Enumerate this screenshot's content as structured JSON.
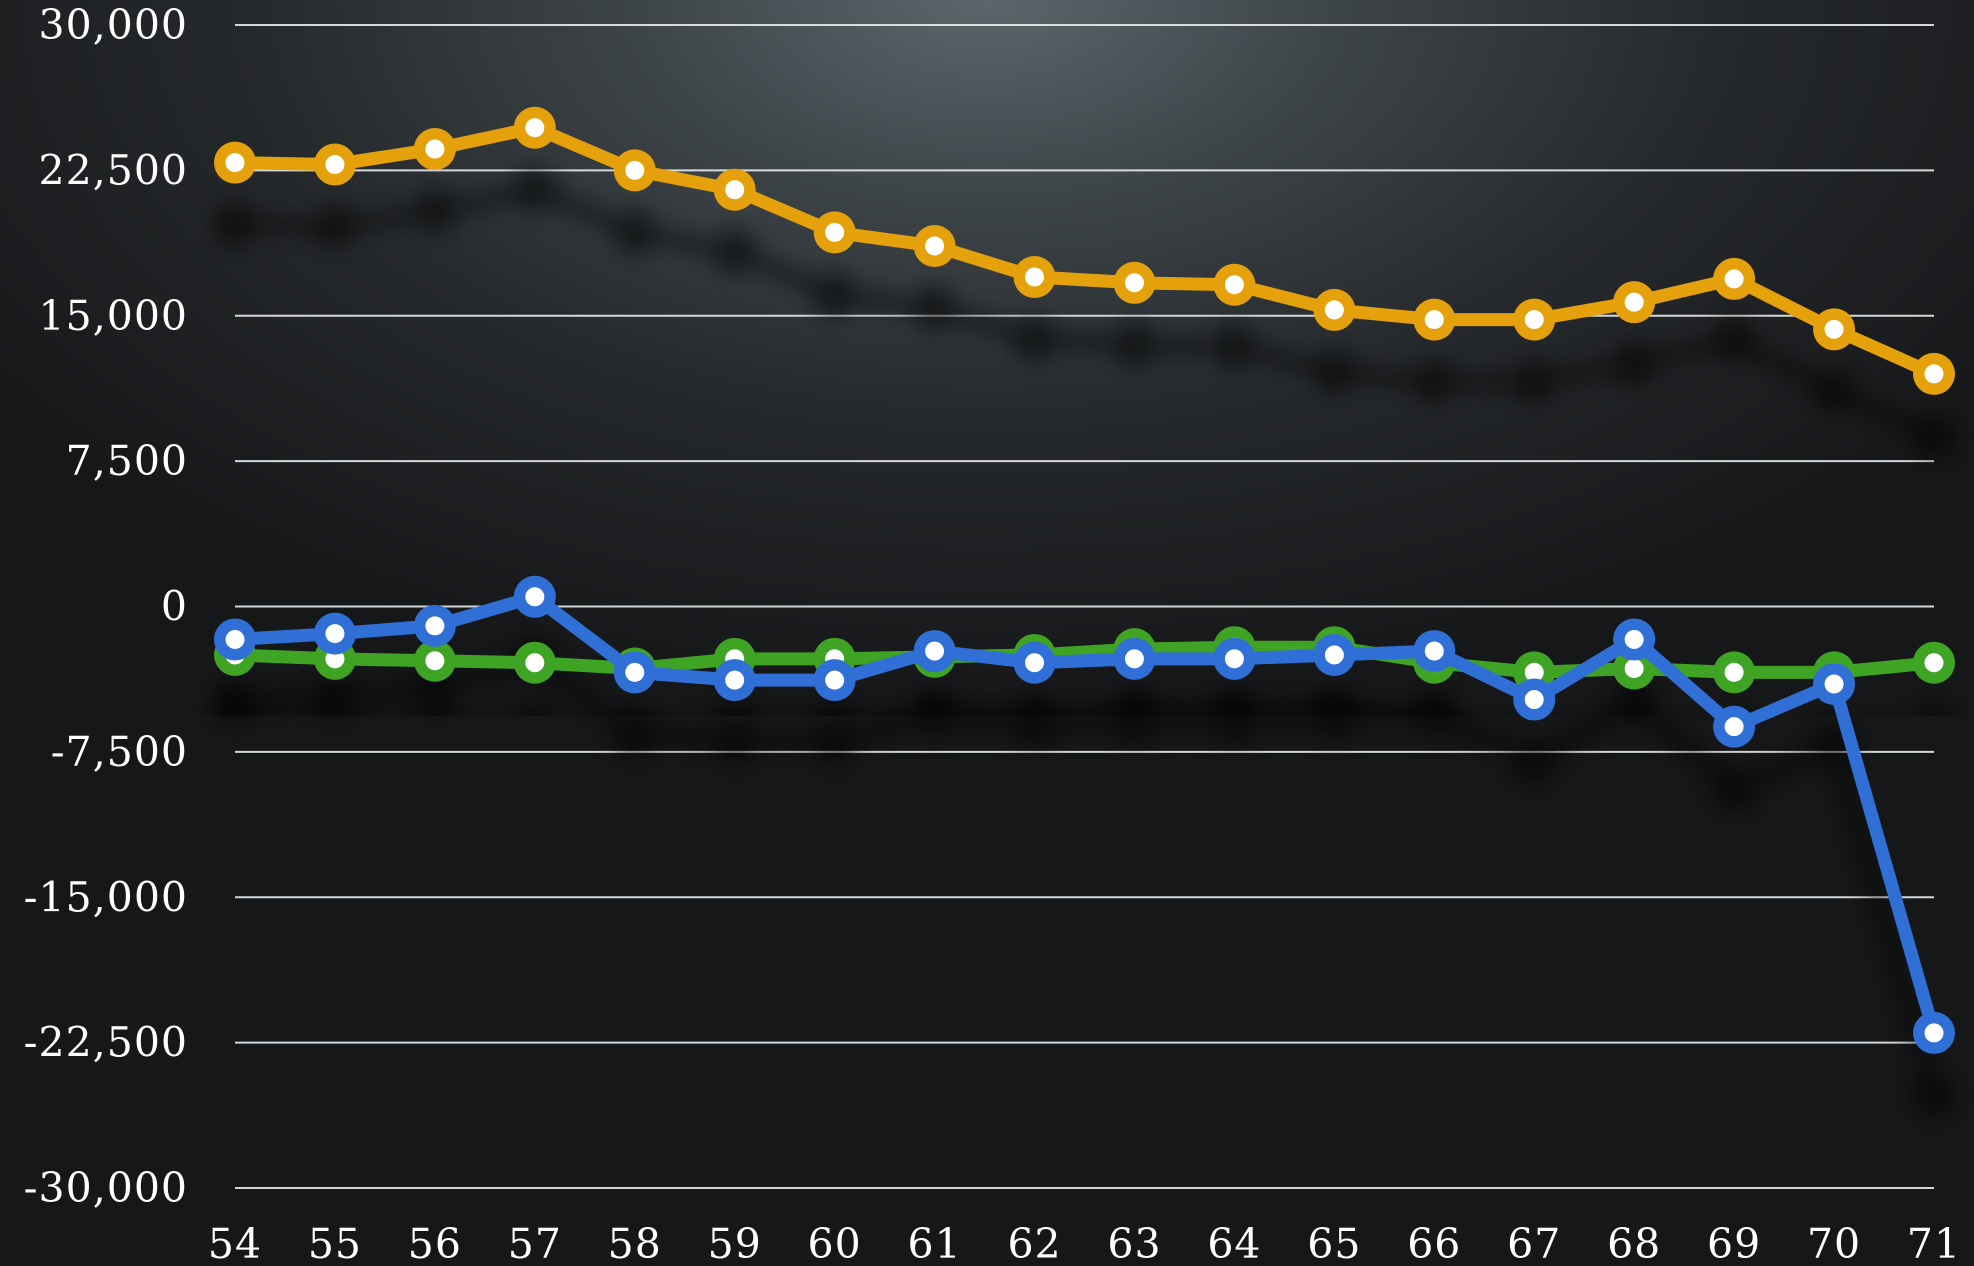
{
  "chart_data": {
    "type": "line",
    "title": "",
    "xlabel": "",
    "ylabel": "",
    "x": [
      "54",
      "55",
      "56",
      "57",
      "58",
      "59",
      "60",
      "61",
      "62",
      "63",
      "64",
      "65",
      "66",
      "67",
      "68",
      "69",
      "70",
      "71"
    ],
    "ylim": [
      -30000,
      30000
    ],
    "yticks": [
      "30,000",
      "22,500",
      "15,000",
      "7,500",
      "0",
      "-7,500",
      "-15,000",
      "-22,500",
      "-30,000"
    ],
    "ytick_values": [
      30000,
      22500,
      15000,
      7500,
      0,
      -7500,
      -15000,
      -22500,
      -30000
    ],
    "grid": true,
    "legend": "none",
    "series": [
      {
        "color": "#e5a10c",
        "values": [
          22900,
          22800,
          23600,
          24700,
          22500,
          21500,
          19300,
          18600,
          17000,
          16700,
          16600,
          15300,
          14800,
          14800,
          15700,
          16900,
          14300,
          12000
        ]
      },
      {
        "color": "#3fa324",
        "values": [
          -2500,
          -2700,
          -2800,
          -2900,
          -3200,
          -2700,
          -2700,
          -2600,
          -2500,
          -2200,
          -2100,
          -2100,
          -2900,
          -3400,
          -3200,
          -3400,
          -3400,
          -2900
        ]
      },
      {
        "color": "#2f6fd6",
        "values": [
          -1700,
          -1400,
          -1000,
          500,
          -3400,
          -3800,
          -3800,
          -2300,
          -2900,
          -2700,
          -2700,
          -2500,
          -2300,
          -4800,
          -1700,
          -6200,
          -4000,
          -22000
        ]
      }
    ]
  }
}
